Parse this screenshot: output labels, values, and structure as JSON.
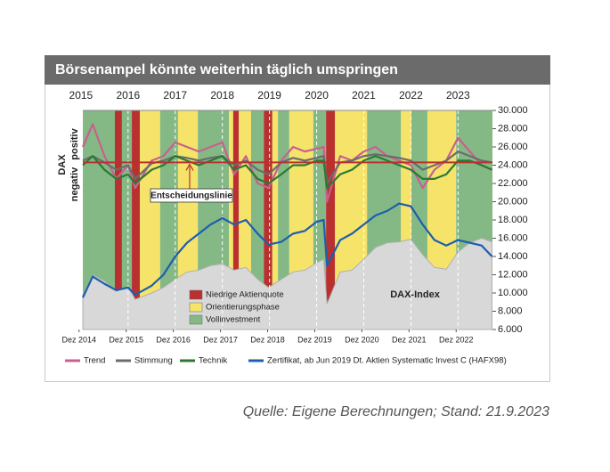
{
  "chart_data": {
    "type": "line",
    "title": "Börsenampel könnte weiterhin täglich umspringen",
    "source": "Quelle: Eigene Berechnungen; Stand: 21.9.2023",
    "indicator_axis": {
      "title": "DAX",
      "negative": "negativ",
      "positive": "positiv"
    },
    "xlim": [
      2015.04,
      2023.73
    ],
    "xticks": [
      2015,
      2016,
      2017,
      2018,
      2019,
      2020,
      2021,
      2022,
      2023
    ],
    "xticks_bottom": [
      {
        "value": 2014.96,
        "label": "Dez 2014"
      },
      {
        "value": 2015.96,
        "label": "Dez 2015"
      },
      {
        "value": 2016.96,
        "label": "Dez 2016"
      },
      {
        "value": 2017.96,
        "label": "Dez 2017"
      },
      {
        "value": 2018.96,
        "label": "Dez 2018"
      },
      {
        "value": 2019.96,
        "label": "Dez 2019"
      },
      {
        "value": 2020.96,
        "label": "Dez 2020"
      },
      {
        "value": 2021.96,
        "label": "Dez 2021"
      },
      {
        "value": 2022.96,
        "label": "Dez 2022"
      }
    ],
    "ylim": [
      6000,
      30000
    ],
    "yticks": [
      {
        "value": 30000,
        "label": "30.000"
      },
      {
        "value": 28000,
        "label": "28.000"
      },
      {
        "value": 26000,
        "label": "26.000"
      },
      {
        "value": 24000,
        "label": "24.000"
      },
      {
        "value": 22000,
        "label": "22.000"
      },
      {
        "value": 20000,
        "label": "20.000"
      },
      {
        "value": 18000,
        "label": "18.000"
      },
      {
        "value": 16000,
        "label": "16.000"
      },
      {
        "value": 14000,
        "label": "14.000"
      },
      {
        "value": 12000,
        "label": "12.000"
      },
      {
        "value": 10000,
        "label": "10.000"
      },
      {
        "value": 8000,
        "label": "8.000"
      },
      {
        "value": 6000,
        "label": "6.000"
      }
    ],
    "phases": [
      {
        "name": "Niedrige Aktienquote",
        "color": "#b8312f"
      },
      {
        "name": "Orientierungsphase",
        "color": "#f6e36a"
      },
      {
        "name": "Vollinvestment",
        "color": "#84b985"
      }
    ],
    "bands": [
      {
        "from": 2015.04,
        "to": 2015.72,
        "phase": 2
      },
      {
        "from": 2015.72,
        "to": 2015.87,
        "phase": 0
      },
      {
        "from": 2015.87,
        "to": 2016.08,
        "phase": 2
      },
      {
        "from": 2016.08,
        "to": 2016.25,
        "phase": 0
      },
      {
        "from": 2016.25,
        "to": 2016.68,
        "phase": 1
      },
      {
        "from": 2016.68,
        "to": 2017.06,
        "phase": 2
      },
      {
        "from": 2017.06,
        "to": 2017.48,
        "phase": 1
      },
      {
        "from": 2017.48,
        "to": 2018.14,
        "phase": 2
      },
      {
        "from": 2018.14,
        "to": 2018.23,
        "phase": 1
      },
      {
        "from": 2018.23,
        "to": 2018.35,
        "phase": 0
      },
      {
        "from": 2018.35,
        "to": 2018.61,
        "phase": 1
      },
      {
        "from": 2018.61,
        "to": 2018.88,
        "phase": 2
      },
      {
        "from": 2018.88,
        "to": 2019.06,
        "phase": 0
      },
      {
        "from": 2019.06,
        "to": 2019.18,
        "phase": 1
      },
      {
        "from": 2019.18,
        "to": 2019.42,
        "phase": 2
      },
      {
        "from": 2019.42,
        "to": 2019.93,
        "phase": 1
      },
      {
        "from": 2019.93,
        "to": 2020.2,
        "phase": 2
      },
      {
        "from": 2020.2,
        "to": 2020.39,
        "phase": 0
      },
      {
        "from": 2020.39,
        "to": 2021.07,
        "phase": 1
      },
      {
        "from": 2021.07,
        "to": 2021.79,
        "phase": 2
      },
      {
        "from": 2021.79,
        "to": 2022.01,
        "phase": 1
      },
      {
        "from": 2022.01,
        "to": 2022.35,
        "phase": 2
      },
      {
        "from": 2022.35,
        "to": 2022.96,
        "phase": 1
      },
      {
        "from": 2022.96,
        "to": 2023.73,
        "phase": 2
      }
    ],
    "decision_line": {
      "value": 24300,
      "label": "Entscheidungslinie",
      "color": "#b8312f"
    },
    "x": [
      2015.04,
      2015.25,
      2015.5,
      2015.75,
      2016.0,
      2016.15,
      2016.5,
      2016.75,
      2017.0,
      2017.25,
      2017.5,
      2017.75,
      2018.0,
      2018.25,
      2018.5,
      2018.75,
      2018.98,
      2019.25,
      2019.5,
      2019.75,
      2020.0,
      2020.15,
      2020.22,
      2020.5,
      2020.75,
      2021.0,
      2021.25,
      2021.5,
      2021.75,
      2022.0,
      2022.25,
      2022.5,
      2022.75,
      2023.0,
      2023.25,
      2023.5,
      2023.72
    ],
    "series": [
      {
        "name": "DAX-Index",
        "kind": "area",
        "in_legend": false,
        "color": "#d8d8d8",
        "values": [
          9800,
          12000,
          11300,
          10200,
          10700,
          9300,
          10000,
          10600,
          11500,
          12300,
          12500,
          13000,
          13200,
          12500,
          12800,
          11500,
          10600,
          11500,
          12300,
          12500,
          13300,
          13700,
          8800,
          12300,
          12500,
          13700,
          15000,
          15500,
          15600,
          15900,
          14200,
          12800,
          12600,
          14500,
          15500,
          16000,
          15600
        ]
      },
      {
        "name": "Zertifikat, ab Jun 2019 Dt. Aktien Systematic Invest C (HAFX98)",
        "kind": "line",
        "in_legend": true,
        "color": "#1d5fae",
        "values": [
          9500,
          11800,
          11000,
          10300,
          10600,
          9800,
          10800,
          12000,
          14000,
          15500,
          16500,
          17500,
          18200,
          17500,
          18000,
          16500,
          15300,
          15600,
          16500,
          16800,
          17800,
          18000,
          13000,
          15800,
          16500,
          17500,
          18500,
          19000,
          19800,
          19500,
          17500,
          15800,
          15200,
          15800,
          15500,
          15200,
          14000
        ]
      },
      {
        "name": "Trend",
        "kind": "line",
        "in_legend": true,
        "color": "#c9608e",
        "values": [
          26000,
          28500,
          25000,
          22500,
          24000,
          21500,
          24500,
          25000,
          26500,
          26000,
          25500,
          26000,
          26500,
          23000,
          25000,
          22000,
          21500,
          24500,
          26000,
          25500,
          25800,
          26000,
          20000,
          25000,
          24500,
          25500,
          26000,
          25000,
          24500,
          24000,
          21500,
          23500,
          24500,
          27000,
          25500,
          24000,
          23500
        ]
      },
      {
        "name": "Stimmung",
        "kind": "line",
        "in_legend": true,
        "color": "#6c6c6c",
        "values": [
          24500,
          25000,
          24300,
          23500,
          24000,
          22500,
          24200,
          24500,
          25000,
          24800,
          24500,
          24800,
          25000,
          24000,
          24500,
          23500,
          23000,
          24300,
          24800,
          24500,
          24800,
          25000,
          22000,
          24300,
          24500,
          25000,
          25200,
          25000,
          24800,
          24500,
          23500,
          24000,
          24500,
          25500,
          25000,
          24500,
          24300
        ]
      },
      {
        "name": "Technik",
        "kind": "line",
        "in_legend": true,
        "color": "#2a7a32",
        "values": [
          24000,
          25000,
          23500,
          22500,
          23000,
          22000,
          23500,
          24000,
          25000,
          24500,
          24000,
          24500,
          25000,
          23500,
          24000,
          22500,
          22000,
          23000,
          24000,
          24000,
          24500,
          24500,
          21500,
          23000,
          23500,
          24500,
          25000,
          24500,
          24000,
          23500,
          22500,
          22500,
          23000,
          24500,
          24500,
          24000,
          23500
        ]
      }
    ]
  }
}
